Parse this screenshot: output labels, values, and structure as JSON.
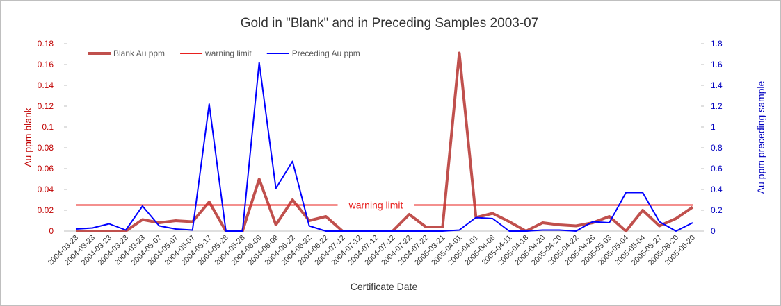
{
  "chart_data": {
    "type": "line",
    "title": "Gold in \"Blank\" and in Preceding Samples 2003-07",
    "xlabel": "Certificate Date",
    "ylabel": "Au ppm blank",
    "y2label": "Au ppm preceding sample",
    "annotation": "warning limit",
    "categories": [
      "2004-03-23",
      "2004-03-23",
      "2004-03-23",
      "2004-03-23",
      "2004-03-23",
      "2004-05-07",
      "2004-05-07",
      "2004-05-07",
      "2004-05-17",
      "2004-05-28",
      "2004-05-28",
      "2004-06-09",
      "2004-06-09",
      "2004-06-22",
      "2004-06-22",
      "2004-06-22",
      "2004-07-12",
      "2004-07-12",
      "2004-07-12",
      "2004-07-12",
      "2004-07-22",
      "2004-07-22",
      "2005-03-21",
      "2005-04-01",
      "2005-04-01",
      "2005-04-08",
      "2005-04-11",
      "2005-04-18",
      "2005-04-20",
      "2005-04-20",
      "2005-04-22",
      "2005-04-26",
      "2005-05-03",
      "2005-05-04",
      "2005-05-04",
      "2005-05-27",
      "2005-06-20",
      "2005-06-20"
    ],
    "series": [
      {
        "name": "Blank Au ppm",
        "color": "#c0504d",
        "width": 4,
        "values": [
          0,
          0,
          0,
          0,
          0.011,
          0.008,
          0.01,
          0.009,
          0.028,
          0,
          0,
          0.05,
          0.006,
          0.03,
          0.01,
          0.014,
          0,
          0,
          0,
          0,
          0.016,
          0.004,
          0.004,
          0.171,
          0.013,
          0.017,
          0.009,
          0,
          0.008,
          0.006,
          0.005,
          0.008,
          0.014,
          0,
          0.02,
          0.005,
          0.012,
          0.023
        ]
      },
      {
        "name": "warning limit",
        "color": "#e8201e",
        "width": 2,
        "values": [
          0.025,
          0.025,
          0.025,
          0.025,
          0.025,
          0.025,
          0.025,
          0.025,
          0.025,
          0.025,
          0.025,
          0.025,
          0.025,
          0.025,
          0.025,
          0.025,
          0.025,
          0.025,
          0.025,
          0.025,
          0.025,
          0.025,
          0.025,
          0.025,
          0.025,
          0.025,
          0.025,
          0.025,
          0.025,
          0.025,
          0.025,
          0.025,
          0.025,
          0.025,
          0.025,
          0.025,
          0.025,
          0.025
        ]
      },
      {
        "name": "Preceding Au ppm",
        "color": "#0000ff",
        "width": 2,
        "axis": "y2",
        "values": [
          0.02,
          0.03,
          0.07,
          0.01,
          0.24,
          0.05,
          0.02,
          0.01,
          1.22,
          0,
          0,
          1.62,
          0.41,
          0.67,
          0.05,
          0,
          0,
          0,
          0,
          0,
          0,
          0,
          0,
          0.01,
          0.13,
          0.12,
          0,
          0,
          0.01,
          0.01,
          0,
          0.09,
          0.08,
          0.37,
          0.37,
          0.09,
          0,
          0.08
        ]
      }
    ],
    "ylim": [
      0,
      0.18
    ],
    "yticks": [
      0,
      0.02,
      0.04,
      0.06,
      0.08,
      0.1,
      0.12,
      0.14,
      0.16,
      0.18
    ],
    "y2lim": [
      0,
      1.8
    ],
    "y2ticks": [
      0,
      0.2,
      0.4,
      0.6,
      0.8,
      1,
      1.2,
      1.4,
      1.6,
      1.8
    ],
    "ycolor": "#c00000",
    "y2color": "#0000c0",
    "legend": "top-left"
  }
}
